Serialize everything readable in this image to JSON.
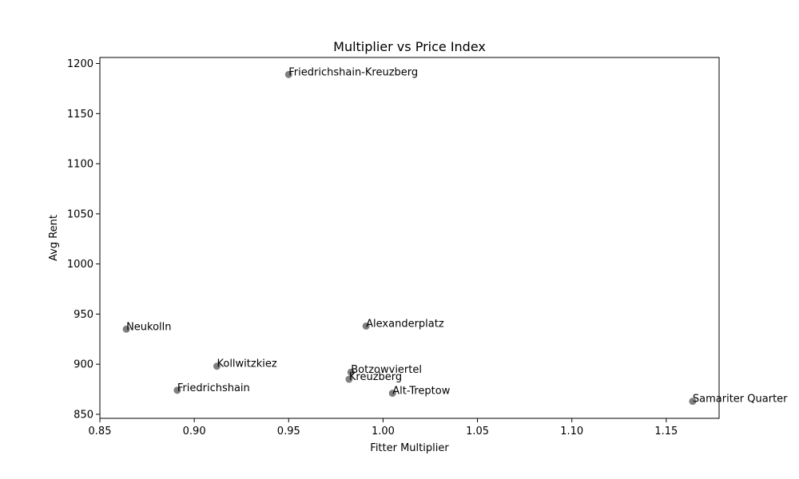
{
  "chart_data": {
    "type": "scatter",
    "title": "Multiplier vs Price Index",
    "xlabel": "Fitter Multiplier",
    "ylabel": "Avg Rent",
    "xlim": [
      0.85,
      1.178
    ],
    "ylim": [
      846,
      1206
    ],
    "xticks": [
      0.85,
      0.9,
      0.95,
      1.0,
      1.05,
      1.1,
      1.15
    ],
    "xtick_labels": [
      "0.85",
      "0.90",
      "0.95",
      "1.00",
      "1.05",
      "1.10",
      "1.15"
    ],
    "yticks": [
      850,
      900,
      950,
      1000,
      1050,
      1100,
      1150,
      1200
    ],
    "ytick_labels": [
      "850",
      "900",
      "950",
      "1000",
      "1050",
      "1100",
      "1150",
      "1200"
    ],
    "grid": false,
    "marker_color": "#808080",
    "points": [
      {
        "label": "Friedrichshain-Kreuzberg",
        "x": 0.95,
        "y": 1189
      },
      {
        "label": "Neukolln",
        "x": 0.864,
        "y": 935
      },
      {
        "label": "Alexanderplatz",
        "x": 0.991,
        "y": 938
      },
      {
        "label": "Kollwitzkiez",
        "x": 0.912,
        "y": 898
      },
      {
        "label": "Botzowviertel",
        "x": 0.983,
        "y": 892
      },
      {
        "label": "Kreuzberg",
        "x": 0.982,
        "y": 885
      },
      {
        "label": "Friedrichshain",
        "x": 0.891,
        "y": 874
      },
      {
        "label": "Alt-Treptow",
        "x": 1.005,
        "y": 871
      },
      {
        "label": "Samariter Quarter",
        "x": 1.164,
        "y": 863
      }
    ]
  }
}
